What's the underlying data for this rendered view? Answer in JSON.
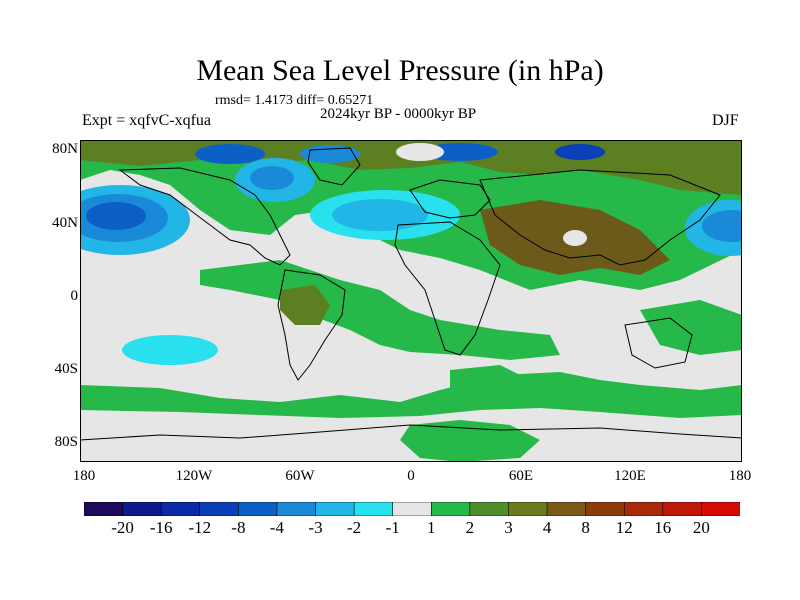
{
  "title": "Mean Sea Level Pressure (in hPa)",
  "stats": "rmsd= 1.4173 diff= 0.65271",
  "period": "2024kyr BP - 0000kyr BP",
  "experiment": "Expt = xqfvC-xqfua",
  "season": "DJF",
  "axes": {
    "x_ticks": [
      "180",
      "120W",
      "60W",
      "0",
      "60E",
      "120E",
      "180"
    ],
    "y_ticks": [
      "80N",
      "40N",
      "0",
      "40S",
      "80S"
    ]
  },
  "colorbar": {
    "labels": [
      "-20",
      "-16",
      "-12",
      "-8",
      "-4",
      "-3",
      "-2",
      "-1",
      "1",
      "2",
      "3",
      "4",
      "8",
      "12",
      "16",
      "20"
    ],
    "colors": [
      "#1e0a5c",
      "#0d1a8c",
      "#0b2aa8",
      "#0a3fb8",
      "#0d5fc8",
      "#1a8ad8",
      "#21b6e6",
      "#28e0ee",
      "#e6e6e6",
      "#27b84a",
      "#4f8f2a",
      "#6a7a1e",
      "#7a5a14",
      "#8c3c0c",
      "#a82a08",
      "#c01808",
      "#d80a06"
    ]
  },
  "colors": {
    "land_outline": "#000000",
    "neutral": "#e6e6e6",
    "green": "#27b84a",
    "olive": "#5c7f22",
    "brown": "#6b5a1a",
    "cyan": "#28e0ee",
    "light_blue": "#21b6e6",
    "mid_blue": "#1a8ad8",
    "blue": "#0d5fc8",
    "navy": "#0a3fb8"
  }
}
